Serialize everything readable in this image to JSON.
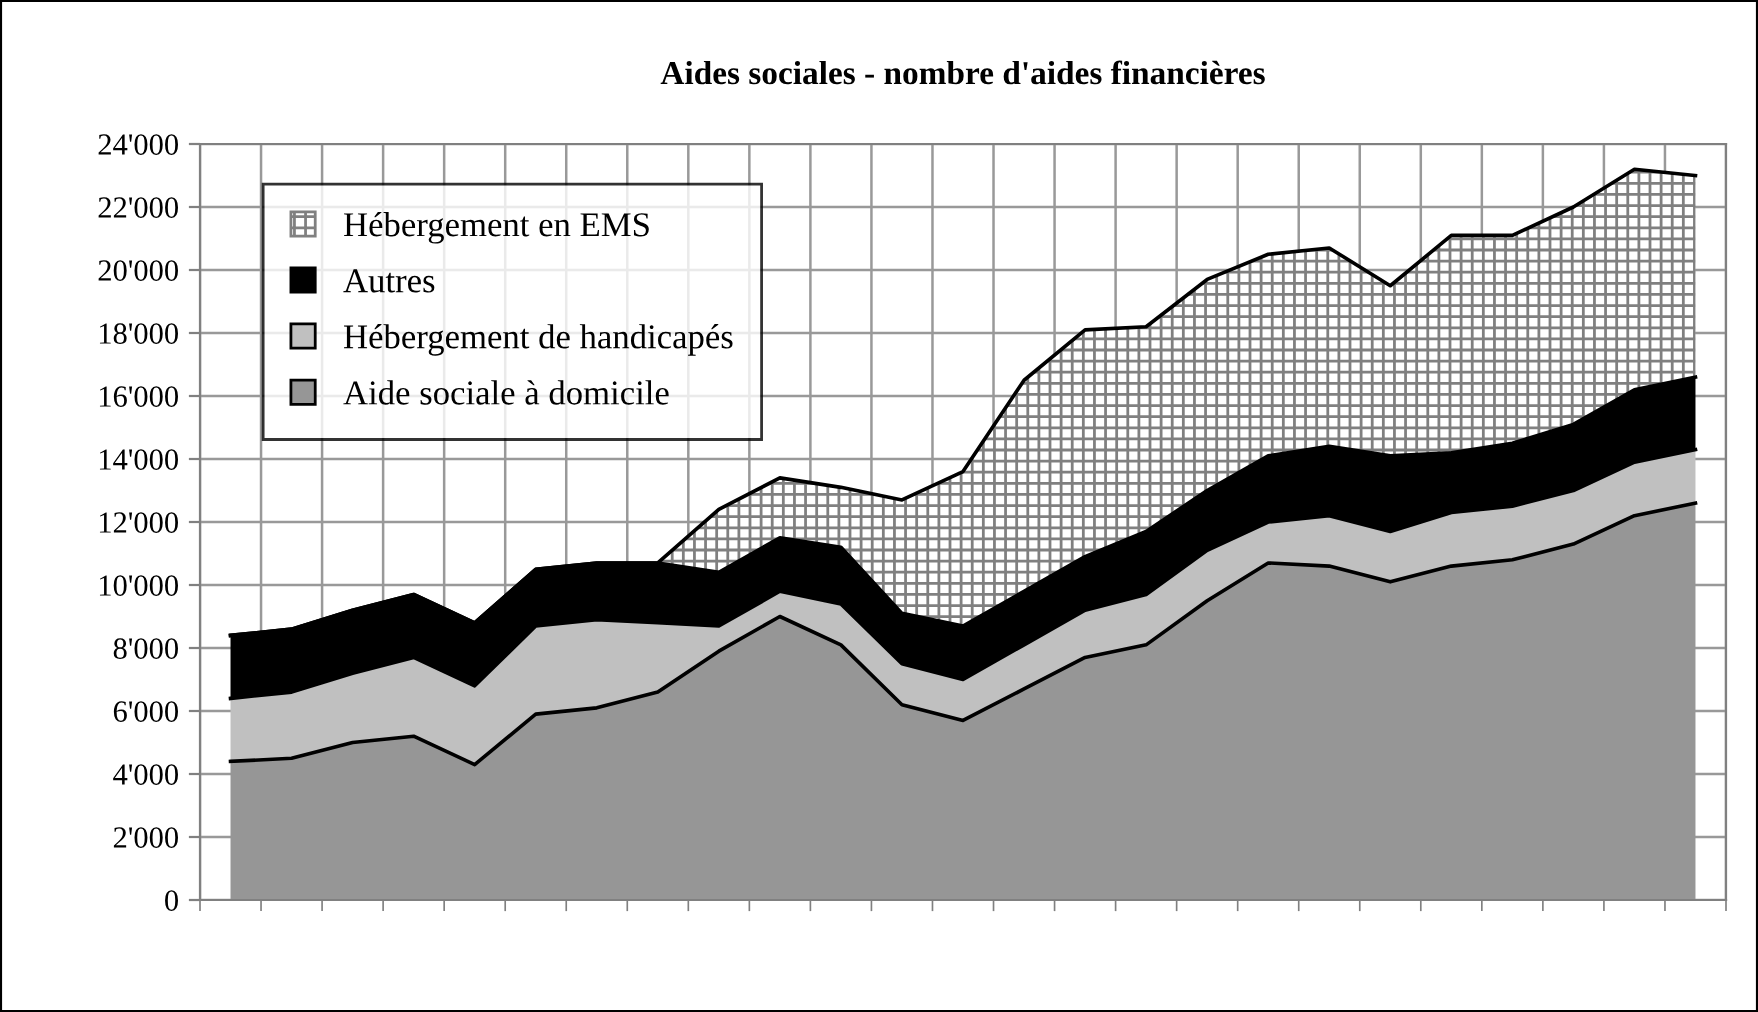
{
  "chart_data": {
    "type": "area",
    "stacked": true,
    "title": "Aides sociales - nombre d'aides financières",
    "categories": [
      null,
      null,
      null,
      null,
      null,
      null,
      null,
      null,
      null,
      null,
      null,
      null,
      null,
      null,
      null,
      null,
      null,
      null,
      null,
      null,
      null,
      null,
      null,
      null,
      null
    ],
    "series": [
      {
        "name": "Aide sociale à domicile",
        "color": "#969696",
        "values": [
          4400,
          4500,
          5000,
          5200,
          4300,
          5900,
          6100,
          6600,
          7900,
          9000,
          8100,
          6200,
          5700,
          6700,
          7700,
          8100,
          9500,
          10700,
          10600,
          10100,
          10600,
          10800,
          11300,
          12200,
          12600
        ]
      },
      {
        "name": "Hébergement de handicapés",
        "color": "#c0c0c0",
        "values": [
          2000,
          2100,
          2200,
          2500,
          2500,
          2800,
          2800,
          2200,
          800,
          800,
          1300,
          1300,
          1300,
          1400,
          1500,
          1600,
          1600,
          1300,
          1600,
          1600,
          1700,
          1700,
          1700,
          1700,
          1700
        ]
      },
      {
        "name": "Autres",
        "color": "#000000",
        "values": [
          2000,
          2000,
          2000,
          2000,
          2000,
          1800,
          1800,
          1900,
          1700,
          1700,
          1800,
          1600,
          1700,
          1700,
          1700,
          2000,
          1900,
          2100,
          2200,
          2400,
          1900,
          2000,
          2100,
          2300,
          2300
        ]
      },
      {
        "name": "Hébergement en EMS",
        "color": "#ffffff",
        "values": [
          0,
          0,
          0,
          0,
          0,
          0,
          0,
          0,
          2000,
          1900,
          1900,
          3600,
          4900,
          6700,
          7200,
          6500,
          6700,
          6400,
          6300,
          5400,
          6900,
          6600,
          6900,
          7000,
          6400
        ]
      }
    ],
    "ylim": [
      0,
      24000
    ],
    "yticks": [
      0,
      {
        "value": 2000,
        "label": "2'000"
      },
      {
        "value": 4000,
        "label": "4'000"
      },
      {
        "value": 6000,
        "label": "6'000"
      },
      {
        "value": 8000,
        "label": "8'000"
      },
      {
        "value": 10000,
        "label": "10'000"
      },
      {
        "value": 12000,
        "label": "12'000"
      },
      {
        "value": 14000,
        "label": "14'000"
      },
      {
        "value": 16000,
        "label": "16'000"
      },
      {
        "value": 18000,
        "label": "18'000"
      },
      {
        "value": 20000,
        "label": "20'000"
      },
      {
        "value": 22000,
        "label": "22'000"
      },
      {
        "value": 24000,
        "label": "24'000"
      }
    ],
    "grid": true,
    "legend": "top left"
  }
}
